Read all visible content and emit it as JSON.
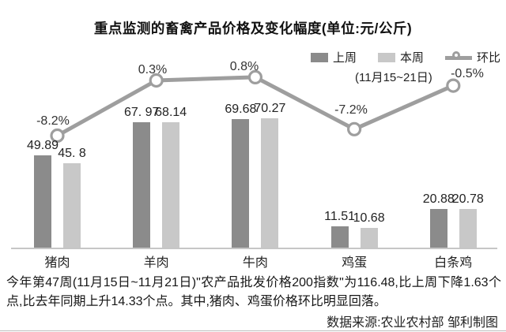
{
  "title": "重点监测的畜禽产品价格及变化幅度(单位:元/公斤)",
  "legend": {
    "last_week": "上周",
    "this_week": "本周",
    "wow": "环比",
    "date_note": "(11月15~21日)"
  },
  "chart_data": {
    "type": "bar",
    "categories": [
      "猪肉",
      "羊肉",
      "牛肉",
      "鸡蛋",
      "白条鸡"
    ],
    "series": [
      {
        "name": "上周",
        "key": "last-week",
        "kind": "bar",
        "color": "#8b8b8b",
        "values": [
          49.89,
          67.97,
          69.68,
          11.51,
          20.88
        ],
        "labels": [
          "49.89",
          "67. 97",
          "69.68",
          "11.51",
          "20.88"
        ]
      },
      {
        "name": "本周",
        "key": "this-week",
        "kind": "bar",
        "color": "#c8c8c8",
        "values": [
          45.8,
          68.14,
          70.27,
          10.68,
          20.78
        ],
        "labels": [
          "45. 8",
          "68.14",
          "70.27",
          "10.68",
          "20.78"
        ]
      },
      {
        "name": "环比",
        "key": "wow",
        "kind": "line",
        "color": "#9e9e9e",
        "values": [
          -8.2,
          0.3,
          0.8,
          -7.2,
          -0.5
        ],
        "labels": [
          "-8.2%",
          "0.3%",
          "0.8%",
          "-7.2%",
          "-0.5%"
        ]
      }
    ],
    "unit": "元/公斤",
    "ylim": [
      0,
      80
    ],
    "grid": false,
    "legend_position": "top-right"
  },
  "footer": {
    "paragraph": "今年第47周(11月15日~11月21日)\"农产品批发价格200指数\"为116.48,比上周下降1.63个点,比去年同期上升14.33个点。其中,猪肉、鸡蛋价格环比明显回落。",
    "source": "数据来源:农业农村部  邹利制图"
  },
  "colors": {
    "bar_last_week": "#8b8b8b",
    "bar_this_week": "#c8c8c8",
    "line_wow": "#9e9e9e",
    "axis": "#c6c6c6",
    "text": "#1c1c1c"
  }
}
